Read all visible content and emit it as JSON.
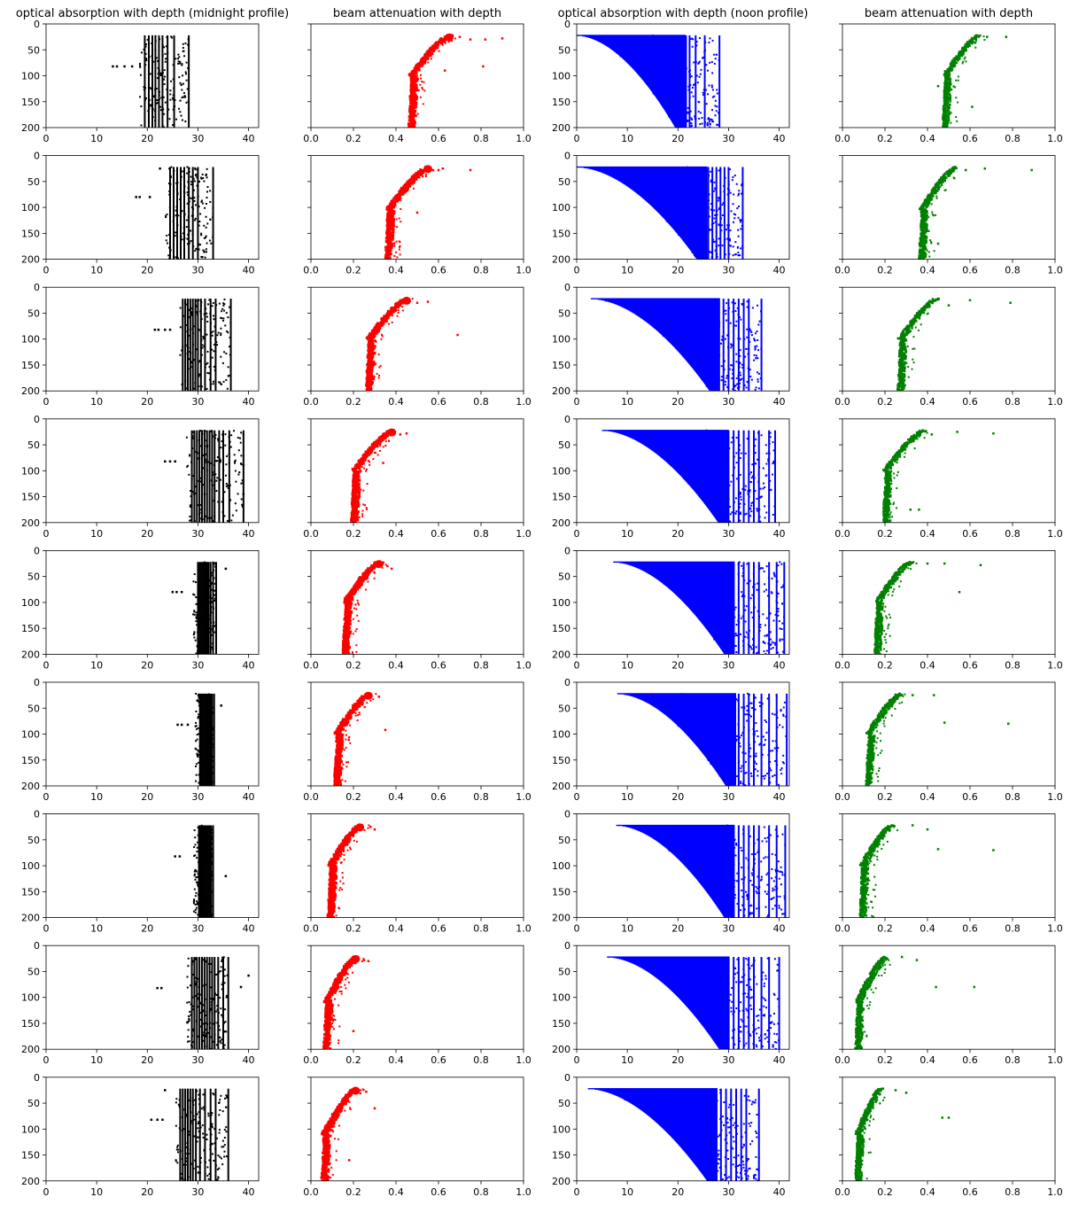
{
  "figure": {
    "col_titles": [
      "optical absorption with depth (midnight profile)",
      "beam attenuation with depth",
      "optical absorption with depth (noon profile)",
      "beam attenuation with depth"
    ],
    "colors": {
      "absorption_midnight": "#000000",
      "attenuation_midnight": "#ff0000",
      "absorption_noon": "#0000ff",
      "attenuation_noon": "#008000"
    }
  },
  "chart_data": {
    "type": "scatter",
    "layout": {
      "rows": 9,
      "cols": 4
    },
    "y_axis": {
      "range": [
        0,
        200
      ],
      "inverted": true,
      "ticks": [
        0,
        50,
        100,
        150,
        200
      ]
    },
    "axes": [
      {
        "column": "optical absorption with depth (midnight profile)",
        "xlim": [
          0,
          42
        ],
        "xticks": [
          0,
          10,
          20,
          30,
          40
        ],
        "color": "#000000"
      },
      {
        "column": "beam attenuation with depth",
        "xlim": [
          0,
          1.0
        ],
        "xticks": [
          0.0,
          0.2,
          0.4,
          0.6,
          0.8,
          1.0
        ],
        "color": "#ff0000"
      },
      {
        "column": "optical absorption with depth (noon profile)",
        "xlim": [
          0,
          42
        ],
        "xticks": [
          0,
          10,
          20,
          30,
          40
        ],
        "color": "#0000ff"
      },
      {
        "column": "beam attenuation with depth",
        "xlim": [
          0,
          1.0
        ],
        "xticks": [
          0.0,
          0.2,
          0.4,
          0.6,
          0.8,
          1.0
        ],
        "color": "#008000"
      }
    ],
    "depth_range": [
      22,
      200
    ],
    "absorption_midnight": [
      {
        "row": 1,
        "x_min": 18.5,
        "x_max": 28.2,
        "columns": [
          19.5,
          20.3,
          21.0,
          21.6,
          22.3,
          23.0,
          24.0,
          25.3,
          28.2
        ],
        "outliers": [
          [
            13.2,
            82
          ],
          [
            14.0,
            82
          ],
          [
            15.5,
            82
          ],
          [
            17.0,
            82
          ]
        ]
      },
      {
        "row": 2,
        "x_min": 23.5,
        "x_max": 33.0,
        "columns": [
          24.5,
          25.2,
          25.9,
          26.6,
          27.3,
          28.2,
          29.0,
          30.0,
          33.0
        ],
        "outliers": [
          [
            17.8,
            80
          ],
          [
            18.5,
            80
          ],
          [
            20.5,
            80
          ],
          [
            22.5,
            25
          ]
        ]
      },
      {
        "row": 3,
        "x_min": 26.5,
        "x_max": 36.5,
        "columns": [
          27.0,
          27.5,
          28.0,
          28.5,
          29.0,
          29.5,
          30.0,
          30.6,
          31.4,
          32.5,
          33.5,
          36.5
        ],
        "outliers": [
          [
            21.5,
            82
          ],
          [
            22.2,
            82
          ],
          [
            23.5,
            82
          ],
          [
            24.5,
            82
          ]
        ]
      },
      {
        "row": 4,
        "x_min": 27.8,
        "x_max": 39.0,
        "columns": [
          28.8,
          29.3,
          29.8,
          30.3,
          30.8,
          31.3,
          31.8,
          32.3,
          32.8,
          33.3,
          34.2,
          35.0,
          36.2,
          39.0
        ],
        "outliers": [
          [
            23.5,
            82
          ],
          [
            24.5,
            82
          ],
          [
            25.5,
            82
          ],
          [
            39.0,
            90
          ],
          [
            39.0,
            145
          ]
        ]
      },
      {
        "row": 5,
        "x_min": 29.0,
        "x_max": 36.0,
        "columns": [
          30.0,
          30.3,
          30.6,
          30.9,
          31.2,
          31.5,
          31.8,
          32.1,
          32.5,
          33.0,
          33.6
        ],
        "outliers": [
          [
            25.0,
            80
          ],
          [
            25.8,
            80
          ],
          [
            26.8,
            80
          ],
          [
            35.5,
            35
          ]
        ]
      },
      {
        "row": 6,
        "x_min": 29.5,
        "x_max": 35.0,
        "columns": [
          30.4,
          30.7,
          31.0,
          31.3,
          31.6,
          31.9,
          32.2,
          32.5,
          32.8,
          33.2
        ],
        "outliers": [
          [
            26.0,
            82
          ],
          [
            26.8,
            82
          ],
          [
            28.0,
            82
          ],
          [
            34.6,
            45
          ]
        ]
      },
      {
        "row": 7,
        "x_min": 29.2,
        "x_max": 35.5,
        "columns": [
          30.2,
          30.5,
          30.8,
          31.1,
          31.4,
          31.7,
          32.0,
          32.3,
          32.6,
          33.0
        ],
        "outliers": [
          [
            25.5,
            82
          ],
          [
            26.4,
            82
          ],
          [
            35.5,
            120
          ]
        ]
      },
      {
        "row": 8,
        "x_min": 27.8,
        "x_max": 40.0,
        "columns": [
          28.8,
          29.3,
          29.8,
          30.3,
          30.8,
          31.3,
          31.8,
          32.3,
          32.8,
          33.3,
          34.0,
          35.0,
          36.0
        ],
        "outliers": [
          [
            22.0,
            82
          ],
          [
            22.8,
            82
          ],
          [
            40.0,
            58
          ],
          [
            38.5,
            80
          ]
        ]
      },
      {
        "row": 9,
        "x_min": 25.5,
        "x_max": 36.0,
        "columns": [
          26.5,
          27.0,
          27.5,
          28.0,
          28.5,
          29.0,
          29.6,
          30.4,
          31.4,
          32.5,
          33.5,
          36.0
        ],
        "outliers": [
          [
            20.8,
            82
          ],
          [
            22.0,
            82
          ],
          [
            23.0,
            82
          ],
          [
            23.5,
            25
          ]
        ]
      }
    ],
    "attenuation_midnight": [
      {
        "row": 1,
        "surface": 0.65,
        "bottom": 0.47,
        "knee_depth": 100,
        "outliers": [
          [
            0.7,
            25
          ],
          [
            0.75,
            30
          ],
          [
            0.82,
            30
          ],
          [
            0.9,
            28
          ],
          [
            0.81,
            82
          ],
          [
            0.63,
            90
          ]
        ]
      },
      {
        "row": 2,
        "surface": 0.55,
        "bottom": 0.36,
        "knee_depth": 105,
        "outliers": [
          [
            0.6,
            28
          ],
          [
            0.62,
            25
          ],
          [
            0.75,
            28
          ],
          [
            0.5,
            110
          ]
        ]
      },
      {
        "row": 3,
        "surface": 0.45,
        "bottom": 0.27,
        "knee_depth": 100,
        "outliers": [
          [
            0.5,
            30
          ],
          [
            0.55,
            28
          ],
          [
            0.69,
            92
          ]
        ]
      },
      {
        "row": 4,
        "surface": 0.38,
        "bottom": 0.2,
        "knee_depth": 100,
        "outliers": [
          [
            0.42,
            30
          ],
          [
            0.45,
            28
          ],
          [
            0.34,
            85
          ]
        ]
      },
      {
        "row": 5,
        "surface": 0.32,
        "bottom": 0.16,
        "knee_depth": 100,
        "outliers": [
          [
            0.36,
            30
          ],
          [
            0.38,
            35
          ]
        ]
      },
      {
        "row": 6,
        "surface": 0.27,
        "bottom": 0.12,
        "knee_depth": 100,
        "outliers": [
          [
            0.32,
            28
          ],
          [
            0.35,
            92
          ]
        ]
      },
      {
        "row": 7,
        "surface": 0.23,
        "bottom": 0.09,
        "knee_depth": 100,
        "outliers": [
          [
            0.28,
            25
          ],
          [
            0.3,
            30
          ]
        ]
      },
      {
        "row": 8,
        "surface": 0.21,
        "bottom": 0.07,
        "knee_depth": 110,
        "outliers": [
          [
            0.25,
            28
          ],
          [
            0.27,
            30
          ],
          [
            0.2,
            165
          ]
        ]
      },
      {
        "row": 9,
        "surface": 0.21,
        "bottom": 0.06,
        "knee_depth": 110,
        "outliers": [
          [
            0.26,
            28
          ],
          [
            0.3,
            60
          ],
          [
            0.18,
            160
          ]
        ]
      }
    ],
    "absorption_noon": [
      {
        "row": 1,
        "surface_x_min": 0.0,
        "surface_depth": 22,
        "bottom_x_min": 19.5,
        "x_max": 28.2,
        "columns": [
          20.2,
          21.0,
          21.6,
          22.3,
          23.5,
          25.3,
          28.2
        ]
      },
      {
        "row": 2,
        "surface_x_min": 0.0,
        "surface_depth": 22,
        "bottom_x_min": 23.8,
        "x_max": 32.8,
        "columns": [
          25.0,
          26.0,
          26.8,
          27.6,
          28.4,
          29.2,
          30.0,
          32.8
        ]
      },
      {
        "row": 3,
        "surface_x_min": 2.8,
        "surface_depth": 22,
        "bottom_x_min": 26.3,
        "x_max": 36.5,
        "columns": [
          28.0,
          29.0,
          30.0,
          31.0,
          32.0,
          33.0,
          34.0,
          36.5
        ]
      },
      {
        "row": 4,
        "surface_x_min": 5.0,
        "surface_depth": 22,
        "bottom_x_min": 28.0,
        "x_max": 39.2,
        "columns": [
          30.0,
          31.0,
          32.0,
          33.0,
          34.0,
          35.0,
          36.0,
          38.0,
          39.2
        ]
      },
      {
        "row": 5,
        "surface_x_min": 7.2,
        "surface_depth": 22,
        "bottom_x_min": 29.2,
        "x_max": 41.0,
        "columns": [
          31.0,
          32.0,
          33.0,
          34.0,
          35.0,
          36.0,
          38.0,
          39.5,
          41.0
        ]
      },
      {
        "row": 6,
        "surface_x_min": 8.0,
        "surface_depth": 22,
        "bottom_x_min": 29.5,
        "x_max": 41.5,
        "columns": [
          31.0,
          32.0,
          33.0,
          34.0,
          35.0,
          36.5,
          38.0,
          39.5,
          41.5
        ]
      },
      {
        "row": 7,
        "surface_x_min": 7.8,
        "surface_depth": 22,
        "bottom_x_min": 29.2,
        "x_max": 41.2,
        "columns": [
          31.0,
          32.0,
          33.0,
          34.0,
          35.0,
          36.0,
          38.0,
          39.5,
          41.2
        ]
      },
      {
        "row": 8,
        "surface_x_min": 6.0,
        "surface_depth": 22,
        "bottom_x_min": 28.2,
        "x_max": 40.0,
        "columns": [
          30.0,
          31.0,
          32.0,
          33.0,
          34.0,
          35.0,
          36.5,
          38.0,
          40.0
        ]
      },
      {
        "row": 9,
        "surface_x_min": 2.2,
        "surface_depth": 22,
        "bottom_x_min": 25.8,
        "x_max": 36.0,
        "columns": [
          27.5,
          28.5,
          29.5,
          30.5,
          31.5,
          32.5,
          33.5,
          36.0
        ]
      }
    ],
    "attenuation_noon": [
      {
        "row": 1,
        "surface": 0.64,
        "bottom": 0.48,
        "knee_depth": 100,
        "outliers": [
          [
            0.68,
            25
          ],
          [
            0.77,
            25
          ],
          [
            0.61,
            160
          ],
          [
            0.45,
            120
          ]
        ]
      },
      {
        "row": 2,
        "surface": 0.53,
        "bottom": 0.37,
        "knee_depth": 105,
        "outliers": [
          [
            0.58,
            28
          ],
          [
            0.67,
            25
          ],
          [
            0.89,
            28
          ],
          [
            0.45,
            170
          ]
        ]
      },
      {
        "row": 3,
        "surface": 0.44,
        "bottom": 0.27,
        "knee_depth": 100,
        "outliers": [
          [
            0.5,
            35
          ],
          [
            0.6,
            25
          ],
          [
            0.79,
            30
          ]
        ]
      },
      {
        "row": 4,
        "surface": 0.38,
        "bottom": 0.2,
        "knee_depth": 100,
        "outliers": [
          [
            0.42,
            30
          ],
          [
            0.54,
            25
          ],
          [
            0.71,
            28
          ],
          [
            0.36,
            175
          ],
          [
            0.32,
            175
          ]
        ]
      },
      {
        "row": 5,
        "surface": 0.32,
        "bottom": 0.16,
        "knee_depth": 100,
        "outliers": [
          [
            0.4,
            25
          ],
          [
            0.48,
            25
          ],
          [
            0.65,
            28
          ],
          [
            0.55,
            80
          ]
        ]
      },
      {
        "row": 6,
        "surface": 0.27,
        "bottom": 0.12,
        "knee_depth": 100,
        "outliers": [
          [
            0.33,
            25
          ],
          [
            0.43,
            25
          ],
          [
            0.48,
            78
          ],
          [
            0.78,
            80
          ]
        ]
      },
      {
        "row": 7,
        "surface": 0.23,
        "bottom": 0.09,
        "knee_depth": 100,
        "outliers": [
          [
            0.33,
            22
          ],
          [
            0.4,
            30
          ],
          [
            0.45,
            68
          ],
          [
            0.71,
            70
          ]
        ]
      },
      {
        "row": 8,
        "surface": 0.2,
        "bottom": 0.07,
        "knee_depth": 110,
        "outliers": [
          [
            0.28,
            22
          ],
          [
            0.35,
            28
          ],
          [
            0.44,
            80
          ],
          [
            0.62,
            80
          ]
        ]
      },
      {
        "row": 9,
        "surface": 0.18,
        "bottom": 0.07,
        "knee_depth": 110,
        "outliers": [
          [
            0.25,
            25
          ],
          [
            0.3,
            30
          ],
          [
            0.47,
            78
          ],
          [
            0.5,
            78
          ]
        ]
      }
    ]
  }
}
